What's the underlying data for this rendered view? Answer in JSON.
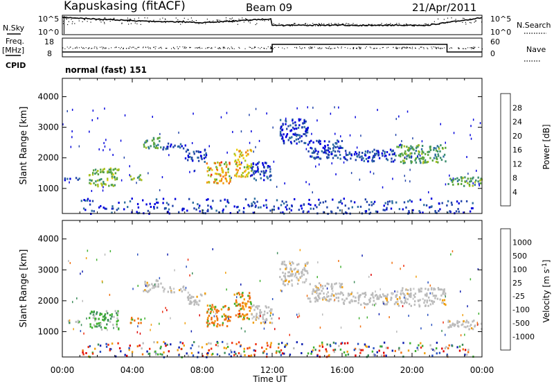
{
  "header": {
    "station": "Kapuskasing (fitACF)",
    "beam": "Beam 09",
    "date": "21/Apr/2011"
  },
  "top_panels": {
    "nsky_label": "N.Sky",
    "nsearch_label": "N.Search",
    "noise_ticks": [
      "10^5",
      "10^0"
    ],
    "freq_label": "Freq.",
    "freq_unit": "[MHz]",
    "freq_ticks": [
      "18",
      "8"
    ],
    "nave_label": "Nave",
    "nave_ticks": [
      "60",
      "0"
    ],
    "cpid_label": "CPID",
    "cpid_value": "normal (fast) 151"
  },
  "chart_data": [
    {
      "type": "heatmap",
      "name": "power",
      "ylabel": "Slant Range [km]",
      "xlabel": "Time UT",
      "x_ticks": [
        "00:00",
        "04:00",
        "08:00",
        "12:00",
        "16:00",
        "20:00",
        "00:00"
      ],
      "x_range_hours": [
        0,
        24
      ],
      "y_ticks": [
        1000,
        2000,
        3000,
        4000
      ],
      "y_range_km": [
        180,
        4600
      ],
      "colorbar": {
        "label": "Power [dB]",
        "ticks": [
          "28",
          "24",
          "20",
          "16",
          "12",
          "8",
          "4"
        ],
        "colors": [
          "#0000dd",
          "#2244aa",
          "#2e6fa0",
          "#3d8f6e",
          "#5aa63c",
          "#a8c020",
          "#e8d010",
          "#f0a010",
          "#f07010",
          "#ee3010",
          "#dd0000"
        ]
      }
    },
    {
      "type": "heatmap",
      "name": "velocity",
      "ylabel": "Slant Range [km]",
      "xlabel": "Time UT",
      "x_ticks": [
        "00:00",
        "04:00",
        "08:00",
        "12:00",
        "16:00",
        "20:00",
        "00:00"
      ],
      "x_range_hours": [
        0,
        24
      ],
      "y_ticks": [
        1000,
        2000,
        3000,
        4000
      ],
      "y_range_km": [
        180,
        4600
      ],
      "colorbar": {
        "label": "Velocity [m s",
        "label_superscript": "-1",
        "label_close": "]",
        "ticks": [
          "1000",
          "500",
          "100",
          "25",
          "-25",
          "-100",
          "-500",
          "-1000"
        ],
        "colors": [
          "#1020b0",
          "#2850c0",
          "#3c8c5a",
          "#40b030",
          "#bbbbbb",
          "#f0a010",
          "#f07010",
          "#ee3010",
          "#dd0000"
        ]
      }
    }
  ],
  "x_axis_title": "Time UT"
}
